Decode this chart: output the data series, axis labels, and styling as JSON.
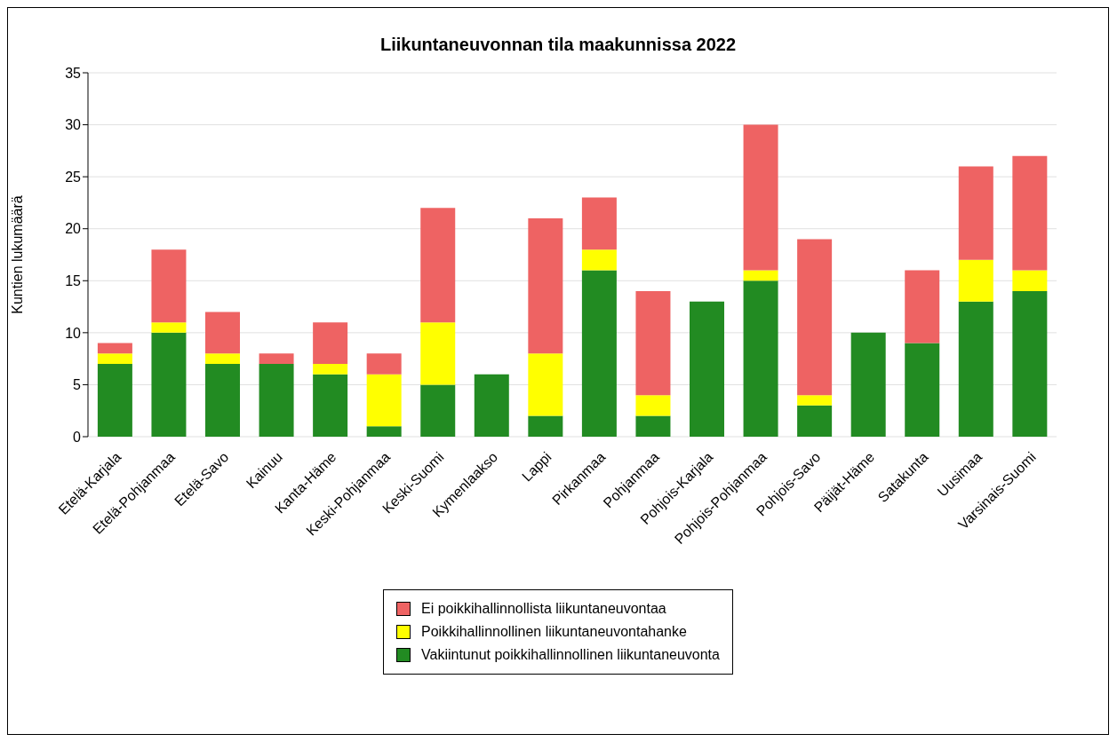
{
  "chart_data": {
    "type": "bar",
    "title": "Liikuntaneuvonnan tila maakunnissa 2022",
    "ylabel": "Kuntien lukumäärä",
    "categories": [
      "Etelä-Karjala",
      "Etelä-Pohjanmaa",
      "Etelä-Savo",
      "Kainuu",
      "Kanta-Häme",
      "Keski-Pohjanmaa",
      "Keski-Suomi",
      "Kymenlaakso",
      "Lappi",
      "Pirkanmaa",
      "Pohjanmaa",
      "Pohjois-Karjala",
      "Pohjois-Pohjanmaa",
      "Pohjois-Savo",
      "Päijät-Häme",
      "Satakunta",
      "Uusimaa",
      "Varsinais-Suomi"
    ],
    "stacked": true,
    "series": [
      {
        "name": "Vakiintunut poikkihallinnollinen liikuntaneuvonta",
        "color": "#228b22",
        "values": [
          7,
          10,
          7,
          7,
          6,
          1,
          5,
          6,
          2,
          16,
          2,
          13,
          15,
          3,
          10,
          9,
          13,
          14
        ]
      },
      {
        "name": "Poikkihallinnollinen liikuntaneuvontahanke",
        "color": "#ffff00",
        "values": [
          1,
          1,
          1,
          0,
          1,
          5,
          6,
          0,
          6,
          2,
          2,
          0,
          1,
          1,
          0,
          0,
          4,
          2
        ]
      },
      {
        "name": "Ei poikkihallinnollista liikuntaneuvontaa",
        "color": "#ee6363",
        "values": [
          1,
          7,
          4,
          1,
          4,
          2,
          11,
          0,
          13,
          5,
          10,
          0,
          14,
          15,
          0,
          7,
          9,
          11
        ]
      }
    ],
    "ylim": [
      0,
      35
    ],
    "yticks": [
      0,
      5,
      10,
      15,
      20,
      25,
      30,
      35
    ],
    "grid": "y",
    "legend": "bottom"
  }
}
